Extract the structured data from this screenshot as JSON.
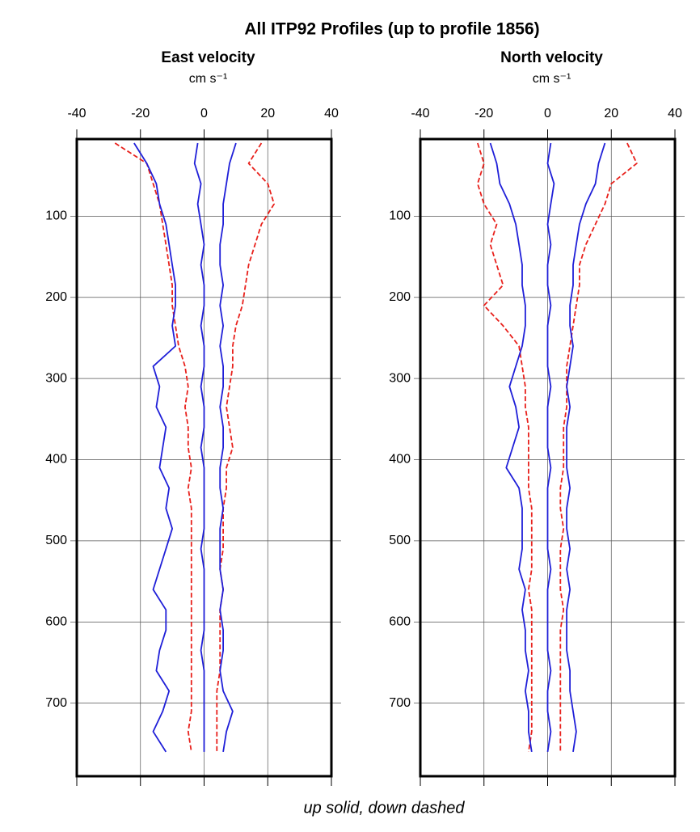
{
  "title": "All ITP92 Profiles (up to profile 1856)",
  "caption": "up solid, down dashed",
  "chart_data": [
    {
      "type": "line",
      "title": "East velocity",
      "xlabel": "cm s⁻¹",
      "xlim": [
        -40,
        40
      ],
      "xticks": [
        -40,
        -20,
        0,
        20,
        40
      ],
      "ylim": [
        5,
        790
      ],
      "yticks": [
        100,
        200,
        300,
        400,
        500,
        600,
        700
      ],
      "y_inverted": true,
      "grid": true,
      "y": [
        10,
        35,
        60,
        85,
        110,
        135,
        160,
        185,
        210,
        235,
        260,
        285,
        310,
        335,
        360,
        385,
        410,
        435,
        460,
        485,
        510,
        535,
        560,
        585,
        610,
        635,
        660,
        685,
        710,
        735,
        760
      ],
      "series": [
        {
          "color": "#e8211c",
          "dashed": true,
          "x": [
            18,
            14,
            20,
            22,
            18,
            16,
            14,
            13,
            12,
            10,
            9,
            9,
            8,
            7,
            8,
            9,
            7,
            7,
            6,
            6,
            6,
            5,
            6,
            5,
            5,
            5,
            5,
            4,
            4,
            4,
            4
          ]
        },
        {
          "color": "#e8211c",
          "dashed": true,
          "x": [
            -28,
            -18,
            -16,
            -14,
            -13,
            -12,
            -11,
            -10,
            -10,
            -9,
            -8,
            -6,
            -5,
            -6,
            -5,
            -5,
            -4,
            -5,
            -4,
            -4,
            -4,
            -4,
            -4,
            -4,
            -4,
            -4,
            -4,
            -4,
            -4,
            -5,
            -4
          ]
        },
        {
          "color": "#1f1fd8",
          "dashed": false,
          "x": [
            10,
            8,
            7,
            6,
            6,
            5,
            5,
            6,
            5,
            6,
            5,
            6,
            6,
            5,
            6,
            6,
            5,
            5,
            6,
            5,
            5,
            5,
            6,
            5,
            6,
            6,
            5,
            6,
            9,
            7,
            6
          ]
        },
        {
          "color": "#1f1fd8",
          "dashed": false,
          "x": [
            -22,
            -18,
            -15,
            -14,
            -12,
            -11,
            -10,
            -9,
            -9,
            -10,
            -9,
            -16,
            -14,
            -15,
            -12,
            -13,
            -14,
            -11,
            -12,
            -10,
            -12,
            -14,
            -16,
            -12,
            -12,
            -14,
            -15,
            -11,
            -13,
            -16,
            -12
          ]
        },
        {
          "color": "#1f1fd8",
          "dashed": false,
          "x": [
            -2,
            -3,
            -1,
            -2,
            -1,
            0,
            -1,
            0,
            0,
            -1,
            0,
            0,
            -1,
            0,
            0,
            -1,
            0,
            0,
            0,
            0,
            -1,
            0,
            0,
            0,
            0,
            -1,
            0,
            0,
            0,
            0,
            0
          ]
        }
      ]
    },
    {
      "type": "line",
      "title": "North velocity",
      "xlabel": "cm s⁻¹",
      "xlim": [
        -40,
        40
      ],
      "xticks": [
        -40,
        -20,
        0,
        20,
        40
      ],
      "ylim": [
        5,
        790
      ],
      "yticks": [
        100,
        200,
        300,
        400,
        500,
        600,
        700
      ],
      "y_inverted": true,
      "grid": true,
      "y": [
        10,
        35,
        60,
        85,
        110,
        135,
        160,
        185,
        210,
        235,
        260,
        285,
        310,
        335,
        360,
        385,
        410,
        435,
        460,
        485,
        510,
        535,
        560,
        585,
        610,
        635,
        660,
        685,
        710,
        735,
        760
      ],
      "series": [
        {
          "color": "#e8211c",
          "dashed": true,
          "x": [
            25,
            28,
            20,
            18,
            15,
            12,
            10,
            10,
            9,
            8,
            7,
            6,
            6,
            6,
            5,
            5,
            5,
            4,
            4,
            5,
            4,
            4,
            4,
            5,
            4,
            4,
            4,
            4,
            4,
            4,
            4
          ]
        },
        {
          "color": "#e8211c",
          "dashed": true,
          "x": [
            -22,
            -20,
            -22,
            -20,
            -16,
            -18,
            -16,
            -14,
            -20,
            -14,
            -9,
            -8,
            -7,
            -7,
            -6,
            -6,
            -6,
            -6,
            -5,
            -5,
            -5,
            -5,
            -6,
            -5,
            -5,
            -5,
            -5,
            -5,
            -5,
            -5,
            -6
          ]
        },
        {
          "color": "#1f1fd8",
          "dashed": false,
          "x": [
            18,
            16,
            15,
            12,
            10,
            9,
            8,
            8,
            7,
            7,
            8,
            7,
            6,
            7,
            6,
            6,
            6,
            7,
            6,
            6,
            7,
            6,
            7,
            6,
            6,
            6,
            7,
            7,
            8,
            9,
            8
          ]
        },
        {
          "color": "#1f1fd8",
          "dashed": false,
          "x": [
            -18,
            -16,
            -15,
            -12,
            -10,
            -9,
            -8,
            -8,
            -7,
            -7,
            -8,
            -10,
            -12,
            -10,
            -9,
            -11,
            -13,
            -9,
            -8,
            -8,
            -8,
            -9,
            -7,
            -8,
            -7,
            -7,
            -6,
            -7,
            -6,
            -6,
            -5
          ]
        },
        {
          "color": "#1f1fd8",
          "dashed": false,
          "x": [
            1,
            0,
            2,
            1,
            0,
            1,
            0,
            0,
            1,
            0,
            0,
            0,
            1,
            0,
            0,
            0,
            1,
            0,
            0,
            0,
            0,
            1,
            0,
            0,
            0,
            0,
            1,
            0,
            0,
            1,
            0
          ]
        }
      ]
    }
  ]
}
